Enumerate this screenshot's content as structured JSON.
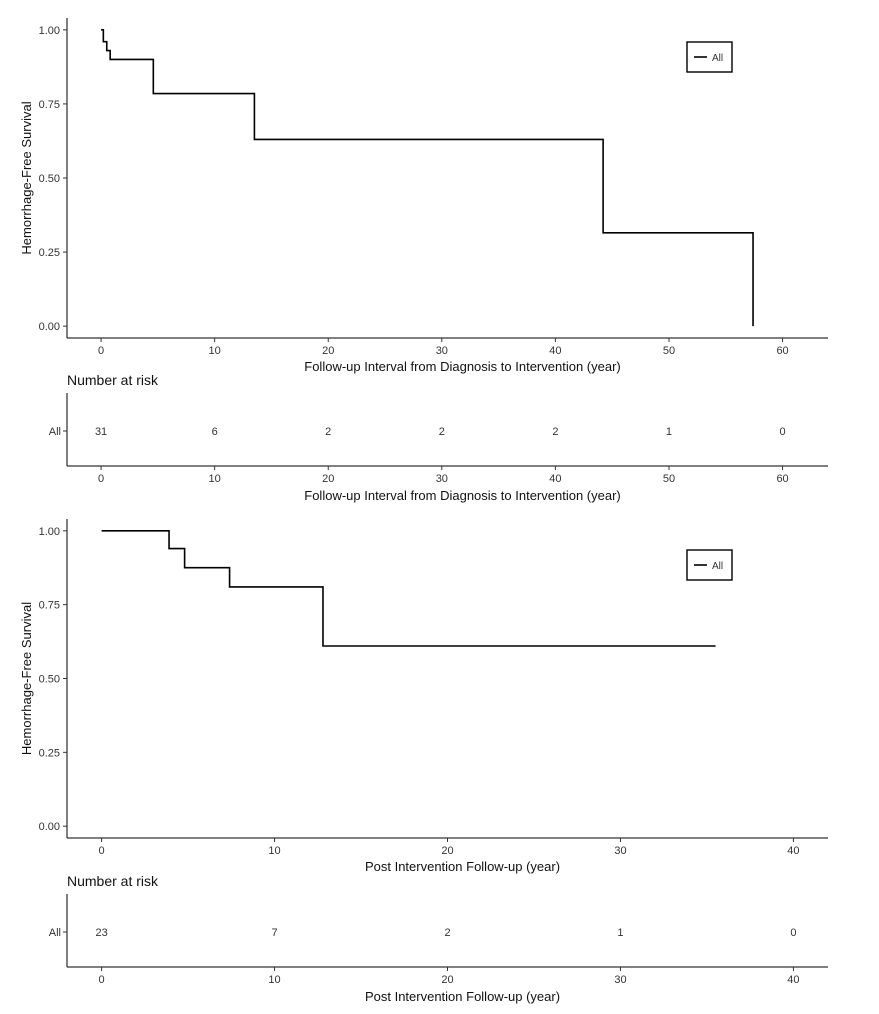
{
  "chart_data": [
    {
      "type": "line",
      "ylabel": "Hemorrhage-Free Survival",
      "xlabel": "Follow-up Interval from Diagnosis to Intervention (year)",
      "xticks": [
        0,
        10,
        20,
        30,
        40,
        50,
        60
      ],
      "yticks": [
        "0.00",
        "0.25",
        "0.50",
        "0.75",
        "1.00"
      ],
      "xlim": [
        -3,
        64
      ],
      "ylim": [
        -0.04,
        1.04
      ],
      "legend_position": "top-right",
      "series": [
        {
          "name": "All",
          "x": [
            0,
            0.2,
            0.5,
            0.8,
            4.6,
            13.5,
            44.2,
            57.4,
            57.4
          ],
          "y": [
            1.0,
            0.96,
            0.93,
            0.9,
            0.785,
            0.63,
            0.315,
            0.315,
            0.0
          ]
        }
      ],
      "risk_table": {
        "title": "Number at risk",
        "group": "All",
        "times": [
          0,
          10,
          20,
          30,
          40,
          50,
          60
        ],
        "counts": [
          "31",
          "6",
          "2",
          "2",
          "2",
          "1",
          "0"
        ]
      }
    },
    {
      "type": "line",
      "ylabel": "Hemorrhage-Free Survival",
      "xlabel": "Post Intervention Follow-up (year)",
      "xticks": [
        0,
        10,
        20,
        30,
        40
      ],
      "yticks": [
        "0.00",
        "0.25",
        "0.50",
        "0.75",
        "1.00"
      ],
      "xlim": [
        -2,
        42
      ],
      "ylim": [
        -0.04,
        1.04
      ],
      "legend_position": "top-right",
      "series": [
        {
          "name": "All",
          "x": [
            0,
            3.9,
            4.8,
            7.4,
            12.8,
            35.5
          ],
          "y": [
            1.0,
            0.94,
            0.875,
            0.81,
            0.61,
            0.61
          ]
        }
      ],
      "risk_table": {
        "title": "Number at risk",
        "group": "All",
        "times": [
          0,
          10,
          20,
          30,
          40
        ],
        "counts": [
          "23",
          "7",
          "2",
          "1",
          "0"
        ]
      }
    }
  ]
}
